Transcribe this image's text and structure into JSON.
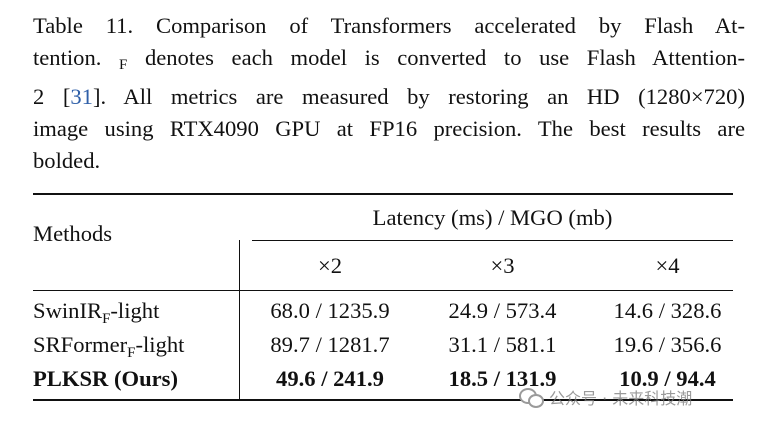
{
  "caption": {
    "line1": "Table 11. Comparison of Transformers accelerated by Flash At-",
    "line2_pre": "tention.",
    "line2_sub": "F",
    "line2_post": "denotes each model is converted to use Flash Attention-",
    "line3_pre": "2 [",
    "line3_cite": "31",
    "line3_post": "]. All metrics are measured by restoring an HD (1280×720)",
    "line4": "image using RTX4090 GPU at FP16 precision. The best results are",
    "line5": "bolded."
  },
  "table": {
    "methods_header": "Methods",
    "group_header": "Latency (ms) / MGO (mb)",
    "scale_headers": [
      "×2",
      "×3",
      "×4"
    ],
    "rows": [
      {
        "method": "SwinIR",
        "method_sub": "F",
        "method_suffix": "-light",
        "values": [
          "68.0 / 1235.9",
          "24.9 / 573.4",
          "14.6 / 328.6"
        ],
        "bold": false
      },
      {
        "method": "SRFormer",
        "method_sub": "F",
        "method_suffix": "-light",
        "values": [
          "89.7 / 1281.7",
          "31.1 / 581.1",
          "19.6 / 356.6"
        ],
        "bold": false
      },
      {
        "method": "PLKSR (Ours)",
        "method_sub": "",
        "method_suffix": "",
        "values": [
          "49.6 / 241.9",
          "18.5 / 131.9",
          "10.9 / 94.4"
        ],
        "bold": true
      }
    ]
  },
  "watermark": {
    "text": "公众号 · 未来科技潮",
    "icon": "wechat-icon"
  }
}
